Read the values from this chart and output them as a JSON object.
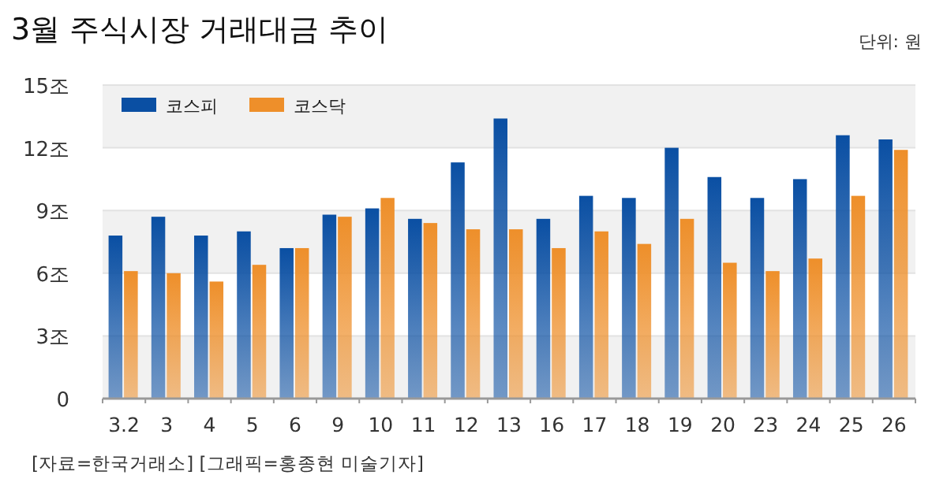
{
  "chart_data": {
    "type": "bar",
    "title": "3월 주식시장 거래대금 추이",
    "annotations": [
      "단위: 원",
      "[자료=한국거래소] [그래픽=홍종현 미술기자]"
    ],
    "categories": [
      "3.2",
      "3",
      "4",
      "5",
      "6",
      "9",
      "10",
      "11",
      "12",
      "13",
      "16",
      "17",
      "18",
      "19",
      "20",
      "23",
      "24",
      "25",
      "26"
    ],
    "series": [
      {
        "name": "코스피",
        "color": "#0a4fa3",
        "values": [
          7.8,
          8.7,
          7.8,
          8.0,
          7.2,
          8.8,
          9.1,
          8.6,
          11.3,
          13.4,
          8.6,
          9.7,
          9.6,
          12.0,
          10.6,
          9.6,
          10.5,
          12.6,
          12.4
        ]
      },
      {
        "name": "코스닥",
        "color": "#ee8f2a",
        "values": [
          6.1,
          6.0,
          5.6,
          6.4,
          7.2,
          8.7,
          9.6,
          8.4,
          8.1,
          8.1,
          7.2,
          8.0,
          7.4,
          8.6,
          6.5,
          6.1,
          6.7,
          9.7,
          11.9
        ]
      }
    ],
    "ylim": [
      0,
      15
    ],
    "yticks": [
      0,
      {
        "value": 3,
        "label": "3조"
      },
      {
        "value": 6,
        "label": "6조"
      },
      {
        "value": 9,
        "label": "9조"
      },
      {
        "value": 12,
        "label": "12조"
      },
      {
        "value": 15,
        "label": "15조"
      }
    ],
    "grid": "y",
    "legend": "top left"
  }
}
